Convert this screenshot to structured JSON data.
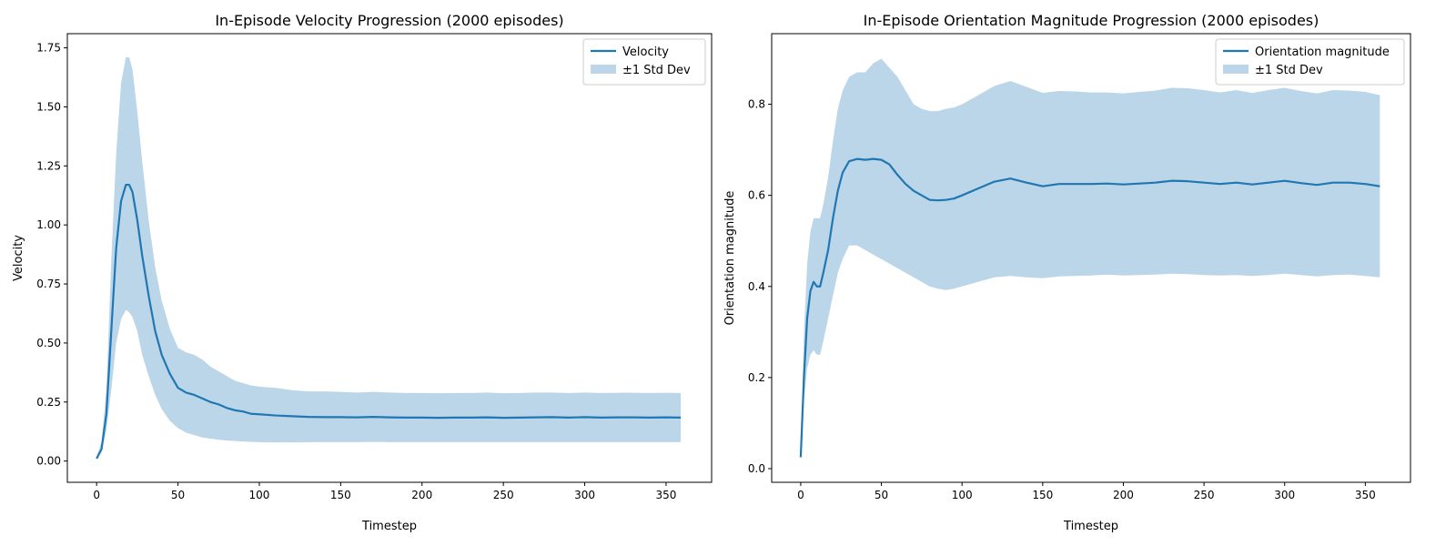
{
  "chart_data": [
    {
      "type": "line",
      "title": "In-Episode Velocity Progression (2000 episodes)",
      "xlabel": "Timestep",
      "ylabel": "Velocity",
      "xlim": [
        -18,
        378
      ],
      "ylim": [
        -0.09,
        1.81
      ],
      "xticks": [
        0,
        50,
        100,
        150,
        200,
        250,
        300,
        350
      ],
      "yticks": [
        0.0,
        0.25,
        0.5,
        0.75,
        1.0,
        1.25,
        1.5,
        1.75
      ],
      "ytick_labels": [
        "0.00",
        "0.25",
        "0.50",
        "0.75",
        "1.00",
        "1.25",
        "1.50",
        "1.75"
      ],
      "grid": false,
      "legend": {
        "placement": "top-right",
        "entries": [
          "Velocity",
          "±1 Std Dev"
        ]
      },
      "colors": {
        "line": "#1f77b4",
        "band": "#1f77b4"
      },
      "series": [
        {
          "name": "Velocity",
          "x": [
            0,
            3,
            6,
            9,
            12,
            15,
            18,
            20,
            22,
            25,
            28,
            32,
            36,
            40,
            45,
            50,
            55,
            60,
            65,
            70,
            75,
            80,
            85,
            90,
            95,
            100,
            110,
            120,
            130,
            140,
            150,
            160,
            170,
            180,
            190,
            200,
            210,
            220,
            230,
            240,
            250,
            260,
            270,
            280,
            290,
            300,
            310,
            320,
            330,
            340,
            350,
            359
          ],
          "y": [
            0.01,
            0.05,
            0.2,
            0.55,
            0.9,
            1.1,
            1.17,
            1.17,
            1.14,
            1.02,
            0.87,
            0.7,
            0.55,
            0.45,
            0.37,
            0.31,
            0.29,
            0.28,
            0.265,
            0.25,
            0.24,
            0.225,
            0.215,
            0.21,
            0.2,
            0.198,
            0.193,
            0.19,
            0.187,
            0.186,
            0.186,
            0.185,
            0.187,
            0.185,
            0.184,
            0.184,
            0.183,
            0.184,
            0.184,
            0.185,
            0.183,
            0.184,
            0.185,
            0.186,
            0.184,
            0.186,
            0.184,
            0.185,
            0.185,
            0.184,
            0.185,
            0.184
          ],
          "lower": [
            0.01,
            0.04,
            0.13,
            0.3,
            0.5,
            0.6,
            0.64,
            0.63,
            0.61,
            0.55,
            0.45,
            0.36,
            0.28,
            0.22,
            0.17,
            0.14,
            0.12,
            0.11,
            0.1,
            0.095,
            0.09,
            0.087,
            0.085,
            0.083,
            0.081,
            0.08,
            0.079,
            0.079,
            0.08,
            0.08,
            0.08,
            0.08,
            0.081,
            0.08,
            0.08,
            0.08,
            0.08,
            0.08,
            0.08,
            0.08,
            0.08,
            0.08,
            0.08,
            0.08,
            0.08,
            0.08,
            0.08,
            0.08,
            0.08,
            0.08,
            0.08,
            0.08
          ],
          "upper": [
            0.02,
            0.08,
            0.3,
            0.85,
            1.3,
            1.6,
            1.71,
            1.71,
            1.66,
            1.48,
            1.27,
            1.02,
            0.82,
            0.68,
            0.56,
            0.48,
            0.46,
            0.45,
            0.43,
            0.4,
            0.38,
            0.36,
            0.34,
            0.33,
            0.32,
            0.315,
            0.31,
            0.3,
            0.295,
            0.295,
            0.293,
            0.29,
            0.293,
            0.29,
            0.288,
            0.288,
            0.287,
            0.288,
            0.288,
            0.29,
            0.287,
            0.288,
            0.29,
            0.29,
            0.288,
            0.29,
            0.288,
            0.289,
            0.289,
            0.288,
            0.289,
            0.288
          ]
        }
      ]
    },
    {
      "type": "line",
      "title": "In-Episode Orientation Magnitude Progression (2000 episodes)",
      "xlabel": "Timestep",
      "ylabel": "Orientation magnitude",
      "xlim": [
        -18,
        378
      ],
      "ylim": [
        -0.03,
        0.955
      ],
      "xticks": [
        0,
        50,
        100,
        150,
        200,
        250,
        300,
        350
      ],
      "yticks": [
        0.0,
        0.2,
        0.4,
        0.6,
        0.8
      ],
      "ytick_labels": [
        "0.0",
        "0.2",
        "0.4",
        "0.6",
        "0.8"
      ],
      "grid": false,
      "legend": {
        "placement": "top-right",
        "entries": [
          "Orientation magnitude",
          "±1 Std Dev"
        ]
      },
      "colors": {
        "line": "#1f77b4",
        "band": "#1f77b4"
      },
      "series": [
        {
          "name": "Orientation magnitude",
          "x": [
            0,
            2,
            4,
            6,
            8,
            10,
            12,
            14,
            17,
            20,
            23,
            26,
            30,
            35,
            40,
            45,
            50,
            55,
            60,
            65,
            70,
            75,
            80,
            85,
            90,
            95,
            100,
            110,
            120,
            130,
            140,
            150,
            160,
            170,
            180,
            190,
            200,
            210,
            220,
            230,
            240,
            250,
            260,
            270,
            280,
            290,
            300,
            310,
            320,
            330,
            340,
            350,
            359
          ],
          "y": [
            0.025,
            0.2,
            0.33,
            0.39,
            0.41,
            0.4,
            0.4,
            0.43,
            0.48,
            0.55,
            0.61,
            0.65,
            0.675,
            0.68,
            0.678,
            0.68,
            0.678,
            0.668,
            0.645,
            0.625,
            0.61,
            0.6,
            0.59,
            0.589,
            0.59,
            0.593,
            0.6,
            0.615,
            0.63,
            0.637,
            0.628,
            0.62,
            0.625,
            0.625,
            0.625,
            0.626,
            0.624,
            0.626,
            0.628,
            0.632,
            0.631,
            0.628,
            0.625,
            0.628,
            0.624,
            0.628,
            0.632,
            0.627,
            0.623,
            0.628,
            0.628,
            0.625,
            0.62
          ],
          "lower": [
            0.025,
            0.15,
            0.22,
            0.25,
            0.26,
            0.25,
            0.25,
            0.28,
            0.33,
            0.38,
            0.43,
            0.46,
            0.49,
            0.49,
            0.48,
            0.47,
            0.46,
            0.45,
            0.44,
            0.43,
            0.42,
            0.41,
            0.4,
            0.395,
            0.392,
            0.395,
            0.4,
            0.41,
            0.42,
            0.423,
            0.42,
            0.418,
            0.422,
            0.423,
            0.424,
            0.426,
            0.424,
            0.425,
            0.426,
            0.428,
            0.427,
            0.425,
            0.424,
            0.425,
            0.423,
            0.425,
            0.428,
            0.425,
            0.422,
            0.425,
            0.426,
            0.423,
            0.42
          ],
          "upper": [
            0.025,
            0.3,
            0.45,
            0.52,
            0.55,
            0.55,
            0.55,
            0.58,
            0.64,
            0.72,
            0.79,
            0.83,
            0.86,
            0.87,
            0.87,
            0.89,
            0.9,
            0.88,
            0.86,
            0.83,
            0.8,
            0.79,
            0.785,
            0.785,
            0.79,
            0.793,
            0.8,
            0.82,
            0.84,
            0.851,
            0.838,
            0.825,
            0.829,
            0.828,
            0.826,
            0.826,
            0.824,
            0.827,
            0.83,
            0.836,
            0.835,
            0.831,
            0.826,
            0.831,
            0.825,
            0.831,
            0.836,
            0.829,
            0.824,
            0.831,
            0.83,
            0.827,
            0.82
          ]
        }
      ]
    }
  ]
}
